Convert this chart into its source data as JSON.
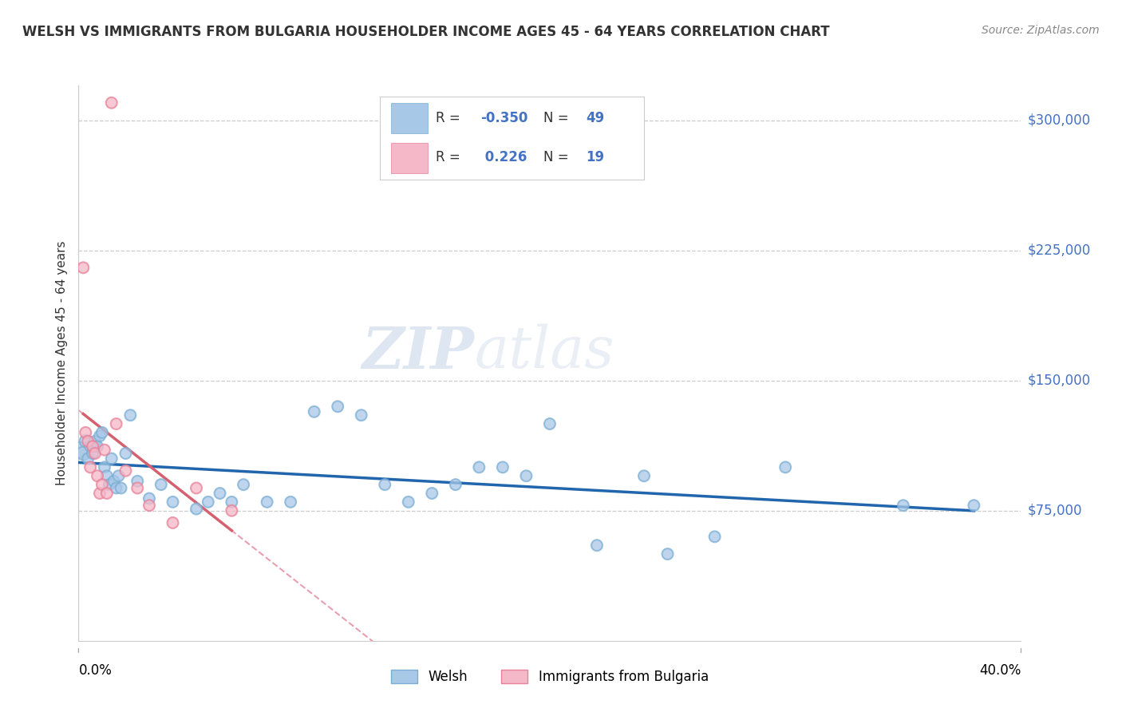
{
  "title": "WELSH VS IMMIGRANTS FROM BULGARIA HOUSEHOLDER INCOME AGES 45 - 64 YEARS CORRELATION CHART",
  "source": "Source: ZipAtlas.com",
  "ylabel": "Householder Income Ages 45 - 64 years",
  "xlim": [
    0.0,
    40.0
  ],
  "ylim": [
    0,
    320000
  ],
  "yticks": [
    75000,
    150000,
    225000,
    300000
  ],
  "ytick_labels": [
    "$75,000",
    "$150,000",
    "$225,000",
    "$300,000"
  ],
  "welsh_color": "#a8c8e8",
  "welsh_edge_color": "#7baed4",
  "bulgarian_color": "#f5b8c8",
  "bulgarian_edge_color": "#e88098",
  "welsh_line_color": "#2166ac",
  "bulgarian_line_color": "#d46070",
  "dashed_line_color": "#e8a0b0",
  "R_welsh": -0.35,
  "N_welsh": 49,
  "R_bulgarian": 0.226,
  "N_bulgarian": 19,
  "legend_welsh": "Welsh",
  "legend_bulgarian": "Immigrants from Bulgaria",
  "watermark_zip": "ZIP",
  "watermark_atlas": "atlas",
  "color_label": "#4472c4",
  "welsh_x": [
    0.1,
    0.2,
    0.3,
    0.4,
    0.5,
    0.6,
    0.7,
    0.8,
    0.9,
    1.0,
    1.1,
    1.2,
    1.3,
    1.4,
    1.5,
    1.6,
    1.7,
    1.8,
    2.0,
    2.2,
    2.5,
    3.0,
    3.5,
    4.0,
    5.0,
    5.5,
    6.0,
    6.5,
    7.0,
    8.0,
    9.0,
    10.0,
    11.0,
    12.0,
    13.0,
    14.0,
    15.0,
    16.0,
    17.0,
    18.0,
    19.0,
    20.0,
    22.0,
    24.0,
    25.0,
    27.0,
    30.0,
    35.0,
    38.0
  ],
  "welsh_y": [
    110000,
    108000,
    115000,
    105000,
    112000,
    108000,
    115000,
    112000,
    118000,
    120000,
    100000,
    95000,
    90000,
    105000,
    92000,
    88000,
    95000,
    88000,
    108000,
    130000,
    92000,
    82000,
    90000,
    80000,
    76000,
    80000,
    85000,
    80000,
    90000,
    80000,
    80000,
    132000,
    135000,
    130000,
    90000,
    80000,
    85000,
    90000,
    100000,
    100000,
    95000,
    125000,
    55000,
    95000,
    50000,
    60000,
    100000,
    78000,
    78000
  ],
  "welsh_sizes": [
    200,
    150,
    120,
    100,
    100,
    100,
    100,
    100,
    100,
    100,
    100,
    100,
    100,
    100,
    100,
    100,
    100,
    100,
    100,
    100,
    100,
    100,
    100,
    100,
    100,
    100,
    100,
    100,
    100,
    100,
    100,
    100,
    100,
    100,
    100,
    100,
    100,
    100,
    100,
    100,
    100,
    100,
    100,
    100,
    100,
    100,
    100,
    100,
    100
  ],
  "bulgarian_x": [
    0.2,
    0.3,
    0.4,
    0.5,
    0.6,
    0.7,
    0.8,
    0.9,
    1.0,
    1.1,
    1.2,
    1.4,
    1.6,
    2.0,
    2.5,
    3.0,
    4.0,
    5.0,
    6.5
  ],
  "bulgarian_y": [
    215000,
    120000,
    115000,
    100000,
    112000,
    108000,
    95000,
    85000,
    90000,
    110000,
    85000,
    310000,
    125000,
    98000,
    88000,
    78000,
    68000,
    88000,
    75000
  ],
  "bulgarian_sizes": [
    100,
    100,
    100,
    100,
    100,
    100,
    100,
    100,
    100,
    100,
    100,
    100,
    100,
    100,
    100,
    100,
    100,
    100,
    100
  ]
}
